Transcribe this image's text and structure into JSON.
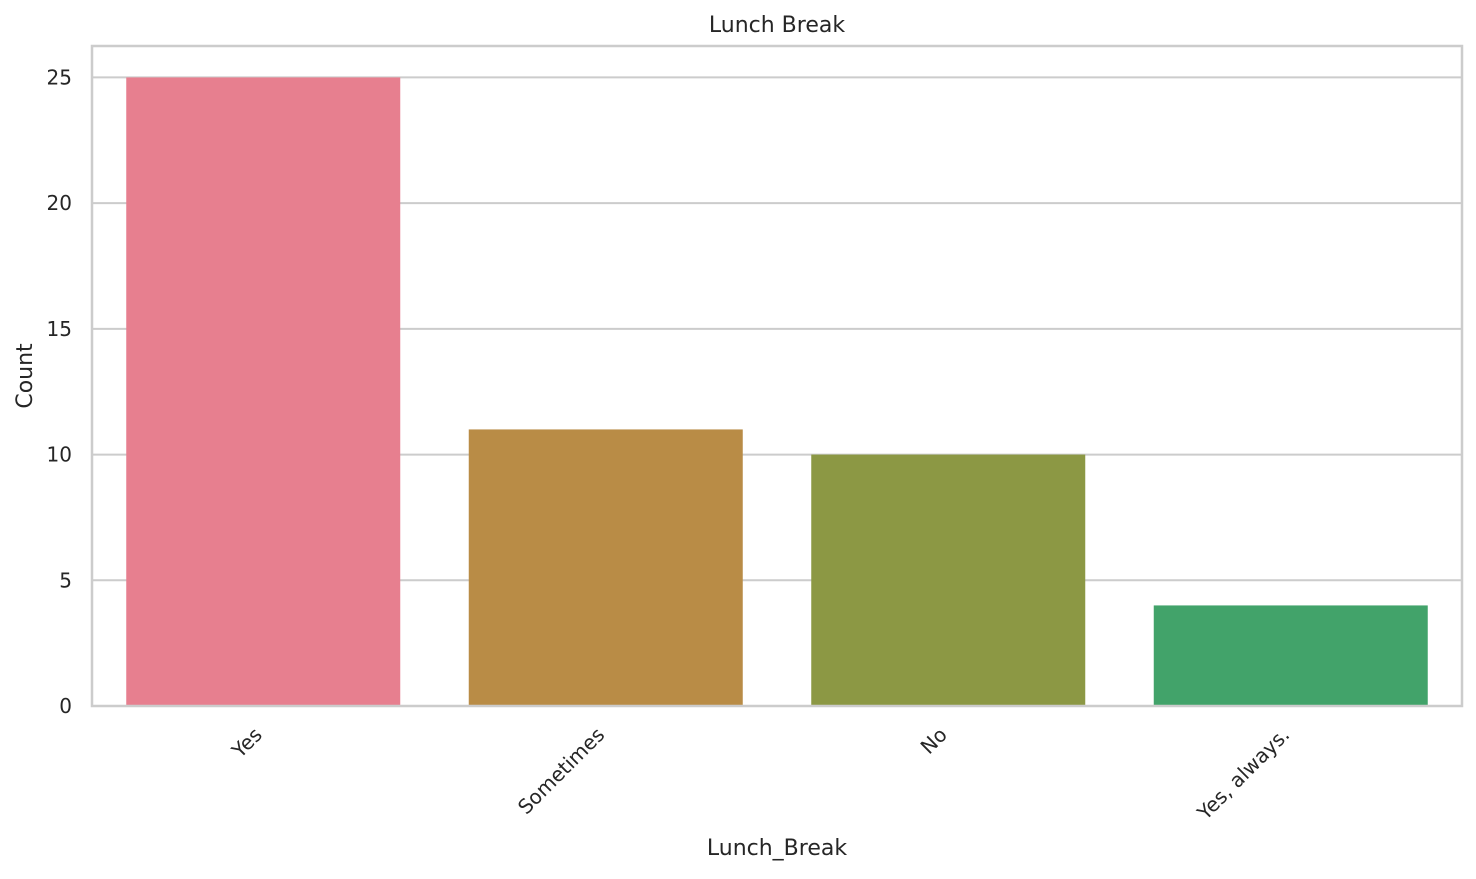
{
  "chart_data": {
    "type": "bar",
    "title": "Lunch Break",
    "xlabel": "Lunch_Break",
    "ylabel": "Count",
    "categories": [
      "Yes",
      "Sometimes",
      "No",
      "Yes, always."
    ],
    "values": [
      25,
      11,
      10,
      4
    ],
    "colors": [
      "#e77f8f",
      "#b98c46",
      "#8c9844",
      "#42a36a"
    ],
    "ylim": [
      0,
      26.25
    ],
    "yticks": [
      0,
      5,
      10,
      15,
      20,
      25
    ],
    "grid": true,
    "x_tick_rotation": 45
  },
  "style": {
    "background": "#ffffff",
    "grid_color": "#cccccc",
    "spine_color": "#cccccc",
    "text_color": "#262626"
  }
}
